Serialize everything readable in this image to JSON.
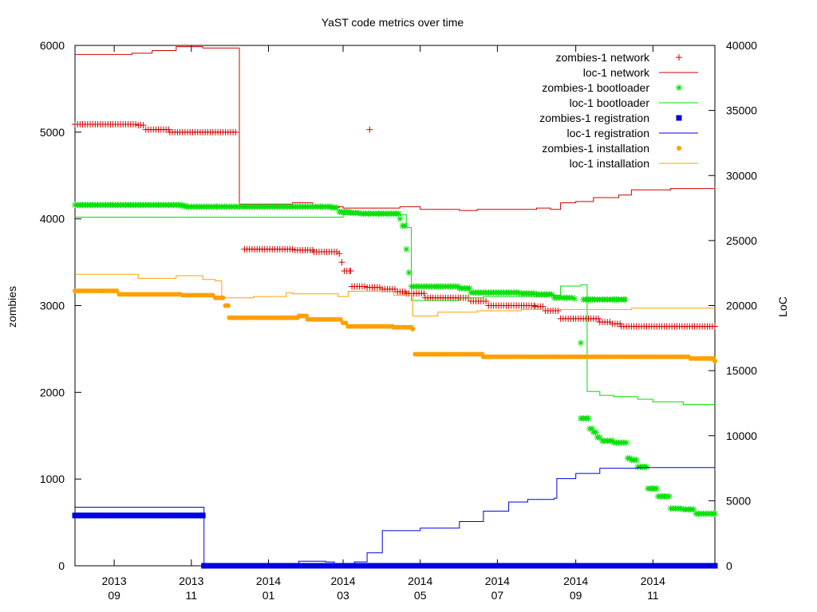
{
  "chart_data": {
    "type": "line",
    "title": "YaST code metrics over time",
    "ylabel": "zombies",
    "y2label": "LoC",
    "ylim": [
      0,
      6000
    ],
    "y2lim": [
      0,
      40000
    ],
    "xlim": [
      "2013-08-01",
      "2014-12-20"
    ],
    "yticks": [
      "0",
      "1000",
      "2000",
      "3000",
      "4000",
      "5000",
      "6000"
    ],
    "y2ticks": [
      "0",
      "5000",
      "10000",
      "15000",
      "20000",
      "25000",
      "30000",
      "35000",
      "40000"
    ],
    "xticks": [
      {
        "date": "2013-09-01",
        "year": "2013",
        "month": "09"
      },
      {
        "date": "2013-11-01",
        "year": "2013",
        "month": "11"
      },
      {
        "date": "2014-01-01",
        "year": "2014",
        "month": "01"
      },
      {
        "date": "2014-03-01",
        "year": "2014",
        "month": "03"
      },
      {
        "date": "2014-05-01",
        "year": "2014",
        "month": "05"
      },
      {
        "date": "2014-07-01",
        "year": "2014",
        "month": "07"
      },
      {
        "date": "2014-09-01",
        "year": "2014",
        "month": "09"
      },
      {
        "date": "2014-11-01",
        "year": "2014",
        "month": "11"
      }
    ],
    "grid": false,
    "legend": "top-right",
    "series": [
      {
        "name": "zombies-1 network",
        "axis": "y",
        "style": "points",
        "marker": "plus",
        "color": "#d20000",
        "data": [
          [
            "2013-08-01",
            5090
          ],
          [
            "2013-09-20",
            5080
          ],
          [
            "2013-09-26",
            5030
          ],
          [
            "2013-10-15",
            5000
          ],
          [
            "2013-12-06",
            5000
          ]
        ]
      },
      {
        "name": "zombies-1 network",
        "axis": "y",
        "style": "points",
        "marker": "plus",
        "color": "#d20000",
        "data": [
          [
            "2014-03-22",
            5030
          ]
        ]
      },
      {
        "name": "zombies-1 network",
        "axis": "y",
        "style": "points",
        "marker": "plus",
        "color": "#d20000",
        "data": [
          [
            "2013-12-13",
            3650
          ],
          [
            "2014-01-22",
            3640
          ],
          [
            "2014-02-06",
            3620
          ],
          [
            "2014-02-22",
            3620
          ],
          [
            "2014-02-26",
            3600
          ],
          [
            "2014-02-28",
            3500
          ],
          [
            "2014-03-02",
            3400
          ],
          [
            "2014-03-07",
            3400
          ],
          [
            "2014-03-08",
            3220
          ],
          [
            "2014-03-20",
            3210
          ],
          [
            "2014-04-01",
            3190
          ],
          [
            "2014-04-13",
            3160
          ],
          [
            "2014-04-20",
            3140
          ],
          [
            "2014-05-05",
            3090
          ],
          [
            "2014-06-10",
            3050
          ],
          [
            "2014-06-24",
            3000
          ],
          [
            "2014-07-31",
            2990
          ],
          [
            "2014-08-08",
            2940
          ],
          [
            "2014-08-20",
            2850
          ],
          [
            "2014-09-20",
            2810
          ],
          [
            "2014-09-30",
            2790
          ],
          [
            "2014-10-07",
            2760
          ],
          [
            "2014-12-20",
            2760
          ]
        ]
      },
      {
        "name": "loc-1 network",
        "axis": "y2",
        "style": "steps",
        "color": "#d20000",
        "data": [
          [
            "2013-08-01",
            39300
          ],
          [
            "2013-09-15",
            39400
          ],
          [
            "2013-10-01",
            39600
          ],
          [
            "2013-10-20",
            39900
          ],
          [
            "2013-11-10",
            39800
          ],
          [
            "2013-12-01",
            39800
          ],
          [
            "2013-12-09",
            39800
          ],
          [
            "2013-12-09",
            27800
          ],
          [
            "2014-01-20",
            27900
          ],
          [
            "2014-02-05",
            27600
          ],
          [
            "2014-03-01",
            27500
          ],
          [
            "2014-03-15",
            27500
          ],
          [
            "2014-04-15",
            27600
          ],
          [
            "2014-05-01",
            27400
          ],
          [
            "2014-06-01",
            27300
          ],
          [
            "2014-06-15",
            27400
          ],
          [
            "2014-07-20",
            27400
          ],
          [
            "2014-08-01",
            27500
          ],
          [
            "2014-08-12",
            27400
          ],
          [
            "2014-08-20",
            27900
          ],
          [
            "2014-09-01",
            28000
          ],
          [
            "2014-09-15",
            28300
          ],
          [
            "2014-10-05",
            28500
          ],
          [
            "2014-10-15",
            28900
          ],
          [
            "2014-11-15",
            29000
          ],
          [
            "2014-12-20",
            29100
          ]
        ]
      },
      {
        "name": "zombies-1 bootloader",
        "axis": "y",
        "style": "points",
        "marker": "star",
        "color": "#00e000",
        "data": [
          [
            "2013-08-01",
            4160
          ],
          [
            "2013-10-25",
            4150
          ],
          [
            "2013-10-28",
            4140
          ],
          [
            "2014-02-20",
            4130
          ],
          [
            "2014-02-26",
            4080
          ],
          [
            "2014-03-07",
            4070
          ],
          [
            "2014-03-15",
            4060
          ],
          [
            "2014-04-10",
            4060
          ],
          [
            "2014-04-15",
            4000
          ],
          [
            "2014-04-17",
            3920
          ],
          [
            "2014-04-20",
            3650
          ],
          [
            "2014-04-22",
            3380
          ],
          [
            "2014-04-24",
            3220
          ],
          [
            "2014-05-15",
            3220
          ],
          [
            "2014-06-01",
            3200
          ],
          [
            "2014-06-10",
            3150
          ],
          [
            "2014-07-20",
            3140
          ],
          [
            "2014-08-01",
            3130
          ],
          [
            "2014-08-15",
            3090
          ],
          [
            "2014-08-31",
            3080
          ]
        ]
      },
      {
        "name": "zombies-1 bootloader",
        "axis": "y",
        "style": "points",
        "marker": "star",
        "color": "#00e000",
        "data": [
          [
            "2014-09-05",
            2570
          ],
          [
            "2014-09-07",
            3070
          ],
          [
            "2014-09-14",
            3070
          ],
          [
            "2014-09-20",
            3070
          ],
          [
            "2014-10-03",
            3070
          ],
          [
            "2014-10-10",
            3070
          ]
        ]
      },
      {
        "name": "zombies-1 bootloader",
        "axis": "y",
        "style": "points",
        "marker": "star",
        "color": "#00e000",
        "data": [
          [
            "2014-09-05",
            1700
          ],
          [
            "2014-09-12",
            1580
          ],
          [
            "2014-09-15",
            1540
          ],
          [
            "2014-09-18",
            1480
          ],
          [
            "2014-09-22",
            1440
          ],
          [
            "2014-10-01",
            1420
          ],
          [
            "2014-10-05",
            1420
          ],
          [
            "2014-10-12",
            1240
          ],
          [
            "2014-10-15",
            1220
          ],
          [
            "2014-10-20",
            1140
          ],
          [
            "2014-10-25",
            1140
          ],
          [
            "2014-10-28",
            890
          ],
          [
            "2014-11-02",
            890
          ],
          [
            "2014-11-05",
            800
          ],
          [
            "2014-11-10",
            800
          ],
          [
            "2014-11-15",
            660
          ],
          [
            "2014-11-25",
            650
          ],
          [
            "2014-12-05",
            600
          ],
          [
            "2014-12-20",
            600
          ]
        ]
      },
      {
        "name": "loc-1 bootloader",
        "axis": "y2",
        "style": "steps",
        "color": "#00e000",
        "data": [
          [
            "2013-08-01",
            26800
          ],
          [
            "2014-02-20",
            26800
          ],
          [
            "2014-03-01",
            27000
          ],
          [
            "2014-04-10",
            27000
          ],
          [
            "2014-04-20",
            26000
          ],
          [
            "2014-04-24",
            20400
          ],
          [
            "2014-06-01",
            20600
          ],
          [
            "2014-06-20",
            20700
          ],
          [
            "2014-08-10",
            20800
          ],
          [
            "2014-08-20",
            21500
          ],
          [
            "2014-09-05",
            21600
          ],
          [
            "2014-09-10",
            21600
          ],
          [
            "2014-09-10",
            13400
          ],
          [
            "2014-09-20",
            13100
          ],
          [
            "2014-10-01",
            13000
          ],
          [
            "2014-10-20",
            12800
          ],
          [
            "2014-11-01",
            12600
          ],
          [
            "2014-11-25",
            12400
          ],
          [
            "2014-12-20",
            12400
          ]
        ]
      },
      {
        "name": "zombies-1 registration",
        "axis": "y",
        "style": "points",
        "marker": "square",
        "color": "#0000e0",
        "data": [
          [
            "2013-08-01",
            580
          ],
          [
            "2013-11-10",
            580
          ],
          [
            "2013-11-11",
            0
          ],
          [
            "2014-12-20",
            0
          ]
        ]
      },
      {
        "name": "loc-1 registration",
        "axis": "y2",
        "style": "steps",
        "color": "#0000e0",
        "data": [
          [
            "2013-08-01",
            4500
          ],
          [
            "2013-11-10",
            4500
          ],
          [
            "2013-11-11",
            0
          ],
          [
            "2014-01-20",
            100
          ],
          [
            "2014-01-25",
            350
          ],
          [
            "2014-02-15",
            300
          ],
          [
            "2014-02-22",
            0
          ],
          [
            "2014-03-01",
            0
          ],
          [
            "2014-03-10",
            300
          ],
          [
            "2014-03-20",
            1000
          ],
          [
            "2014-04-01",
            2700
          ],
          [
            "2014-05-01",
            2900
          ],
          [
            "2014-06-01",
            3400
          ],
          [
            "2014-06-20",
            4200
          ],
          [
            "2014-07-10",
            4900
          ],
          [
            "2014-07-25",
            5100
          ],
          [
            "2014-08-15",
            5200
          ],
          [
            "2014-08-17",
            6700
          ],
          [
            "2014-09-01",
            7100
          ],
          [
            "2014-09-20",
            7500
          ],
          [
            "2014-10-20",
            7550
          ],
          [
            "2014-12-20",
            7500
          ]
        ]
      },
      {
        "name": "zombies-1 installation",
        "axis": "y",
        "style": "points",
        "marker": "circle",
        "color": "#ffa000",
        "data": [
          [
            "2013-08-01",
            3170
          ],
          [
            "2013-09-01",
            3170
          ],
          [
            "2013-09-05",
            3130
          ],
          [
            "2013-10-25",
            3120
          ],
          [
            "2013-11-20",
            3090
          ],
          [
            "2013-11-28",
            3000
          ],
          [
            "2013-11-30",
            3000
          ],
          [
            "2013-12-01",
            2860
          ],
          [
            "2014-01-25",
            2880
          ],
          [
            "2014-02-01",
            2840
          ],
          [
            "2014-03-01",
            2800
          ],
          [
            "2014-03-05",
            2760
          ],
          [
            "2014-03-20",
            2760
          ],
          [
            "2014-04-10",
            2750
          ],
          [
            "2014-04-25",
            2730
          ],
          [
            "2014-04-27",
            2440
          ],
          [
            "2014-06-15",
            2440
          ],
          [
            "2014-06-20",
            2410
          ],
          [
            "2014-12-01",
            2390
          ],
          [
            "2014-12-20",
            2360
          ]
        ]
      },
      {
        "name": "loc-1 installation",
        "axis": "y2",
        "style": "steps",
        "color": "#ffa000",
        "data": [
          [
            "2013-08-01",
            22400
          ],
          [
            "2013-09-20",
            22100
          ],
          [
            "2013-10-20",
            22300
          ],
          [
            "2013-11-10",
            22000
          ],
          [
            "2013-11-20",
            21900
          ],
          [
            "2013-11-25",
            20600
          ],
          [
            "2013-12-20",
            20700
          ],
          [
            "2014-01-15",
            21000
          ],
          [
            "2014-01-20",
            20900
          ],
          [
            "2014-02-25",
            20700
          ],
          [
            "2014-03-05",
            21100
          ],
          [
            "2014-04-10",
            20800
          ],
          [
            "2014-04-25",
            19200
          ],
          [
            "2014-05-15",
            19500
          ],
          [
            "2014-06-15",
            19600
          ],
          [
            "2014-07-20",
            19700
          ],
          [
            "2014-10-15",
            19800
          ],
          [
            "2014-12-20",
            19800
          ]
        ]
      }
    ]
  }
}
